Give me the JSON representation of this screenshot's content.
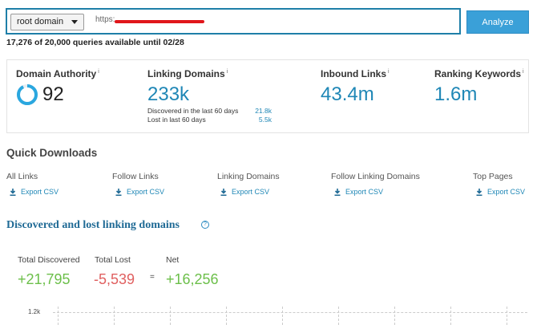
{
  "search": {
    "scope": "root domain",
    "url_prefix": "https:",
    "analyze_label": "Analyze"
  },
  "quota_text": "17,276 of 20,000 queries available until 02/28",
  "metrics": {
    "domain_authority": {
      "label": "Domain Authority",
      "value": "92"
    },
    "linking_domains": {
      "label": "Linking Domains",
      "value": "233k",
      "discovered_label": "Discovered in the last 60 days",
      "discovered_value": "21.8k",
      "lost_label": "Lost in last 60 days",
      "lost_value": "5.5k"
    },
    "inbound_links": {
      "label": "Inbound Links",
      "value": "43.4m"
    },
    "ranking_keywords": {
      "label": "Ranking Keywords",
      "value": "1.6m"
    },
    "info_mark": "i"
  },
  "quick_downloads": {
    "title": "Quick Downloads",
    "items": [
      {
        "label": "All Links",
        "link": "Export CSV"
      },
      {
        "label": "Follow Links",
        "link": "Export CSV"
      },
      {
        "label": "Linking Domains",
        "link": "Export CSV"
      },
      {
        "label": "Follow Linking Domains",
        "link": "Export CSV"
      },
      {
        "label": "Top Pages",
        "link": "Export CSV"
      }
    ]
  },
  "discovered_lost": {
    "title": "Discovered and lost linking domains",
    "info_icon": "question-circle",
    "total_discovered_label": "Total Discovered",
    "total_discovered_value": "+21,795",
    "total_lost_label": "Total Lost",
    "total_lost_value": "-5,539",
    "equals": "=",
    "net_label": "Net",
    "net_value": "+16,256",
    "y_tick": "1.2k"
  },
  "colors": {
    "accent": "#1f87b6",
    "analyze_button": "#3aa0d8",
    "positive": "#6cbf4a",
    "negative": "#e06060",
    "redaction": "#e0161b"
  }
}
